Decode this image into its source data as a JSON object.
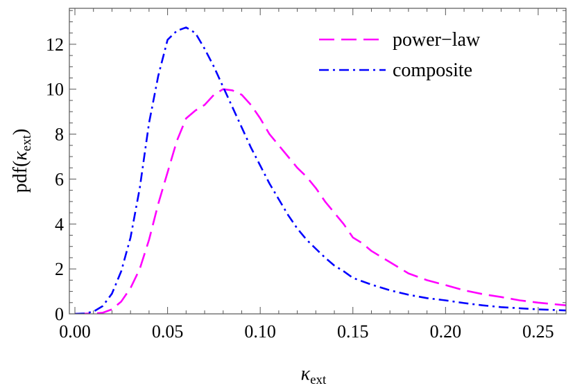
{
  "chart_data": {
    "type": "line",
    "title": "",
    "xlabel": "κ",
    "xlabel_sub": "ext",
    "ylabel_prefix": "pdf(",
    "ylabel_kappa": "κ",
    "ylabel_sub": "ext",
    "ylabel_suffix": ")",
    "xlim": [
      -0.003,
      0.265
    ],
    "ylim": [
      0,
      13.6
    ],
    "xticks": [
      0.0,
      0.05,
      0.1,
      0.15,
      0.2,
      0.25
    ],
    "xtick_labels": [
      "0.00",
      "0.05",
      "0.10",
      "0.15",
      "0.20",
      "0.25"
    ],
    "yticks": [
      0,
      2,
      4,
      6,
      8,
      10,
      12
    ],
    "ytick_labels": [
      "0",
      "2",
      "4",
      "6",
      "8",
      "10",
      "12"
    ],
    "grid": false,
    "legend_position": "top-right",
    "series": [
      {
        "name": "power−law",
        "color": "#ff00ff",
        "dash": "dashed",
        "points": [
          [
            0.0,
            0.0
          ],
          [
            0.01,
            0.02
          ],
          [
            0.015,
            0.05
          ],
          [
            0.02,
            0.2
          ],
          [
            0.025,
            0.55
          ],
          [
            0.03,
            1.15
          ],
          [
            0.035,
            2.0
          ],
          [
            0.04,
            3.3
          ],
          [
            0.045,
            4.9
          ],
          [
            0.05,
            6.3
          ],
          [
            0.055,
            7.7
          ],
          [
            0.06,
            8.7
          ],
          [
            0.065,
            9.05
          ],
          [
            0.07,
            9.3
          ],
          [
            0.075,
            9.75
          ],
          [
            0.08,
            10.0
          ],
          [
            0.085,
            9.95
          ],
          [
            0.09,
            9.75
          ],
          [
            0.095,
            9.3
          ],
          [
            0.1,
            8.7
          ],
          [
            0.105,
            8.0
          ],
          [
            0.11,
            7.5
          ],
          [
            0.115,
            7.0
          ],
          [
            0.12,
            6.5
          ],
          [
            0.125,
            6.1
          ],
          [
            0.13,
            5.6
          ],
          [
            0.135,
            5.0
          ],
          [
            0.14,
            4.5
          ],
          [
            0.145,
            4.0
          ],
          [
            0.15,
            3.4
          ],
          [
            0.155,
            3.15
          ],
          [
            0.16,
            2.8
          ],
          [
            0.165,
            2.55
          ],
          [
            0.17,
            2.3
          ],
          [
            0.175,
            2.05
          ],
          [
            0.18,
            1.8
          ],
          [
            0.19,
            1.5
          ],
          [
            0.2,
            1.28
          ],
          [
            0.21,
            1.05
          ],
          [
            0.22,
            0.88
          ],
          [
            0.23,
            0.75
          ],
          [
            0.24,
            0.6
          ],
          [
            0.25,
            0.5
          ],
          [
            0.265,
            0.38
          ]
        ]
      },
      {
        "name": "composite",
        "color": "#0000ff",
        "dash": "dashdot",
        "points": [
          [
            0.0,
            0.0
          ],
          [
            0.005,
            0.02
          ],
          [
            0.01,
            0.1
          ],
          [
            0.015,
            0.35
          ],
          [
            0.02,
            0.9
          ],
          [
            0.025,
            1.9
          ],
          [
            0.03,
            3.4
          ],
          [
            0.035,
            5.6
          ],
          [
            0.04,
            8.5
          ],
          [
            0.045,
            10.6
          ],
          [
            0.05,
            12.2
          ],
          [
            0.055,
            12.6
          ],
          [
            0.06,
            12.75
          ],
          [
            0.065,
            12.5
          ],
          [
            0.07,
            11.8
          ],
          [
            0.075,
            11.0
          ],
          [
            0.08,
            10.1
          ],
          [
            0.085,
            9.2
          ],
          [
            0.09,
            8.3
          ],
          [
            0.095,
            7.4
          ],
          [
            0.1,
            6.6
          ],
          [
            0.105,
            5.8
          ],
          [
            0.11,
            5.1
          ],
          [
            0.115,
            4.4
          ],
          [
            0.12,
            3.8
          ],
          [
            0.125,
            3.3
          ],
          [
            0.13,
            2.9
          ],
          [
            0.135,
            2.5
          ],
          [
            0.14,
            2.15
          ],
          [
            0.145,
            1.9
          ],
          [
            0.15,
            1.6
          ],
          [
            0.16,
            1.3
          ],
          [
            0.17,
            1.05
          ],
          [
            0.18,
            0.85
          ],
          [
            0.19,
            0.7
          ],
          [
            0.2,
            0.6
          ],
          [
            0.21,
            0.48
          ],
          [
            0.22,
            0.38
          ],
          [
            0.23,
            0.3
          ],
          [
            0.24,
            0.25
          ],
          [
            0.25,
            0.2
          ],
          [
            0.265,
            0.15
          ]
        ]
      }
    ]
  }
}
